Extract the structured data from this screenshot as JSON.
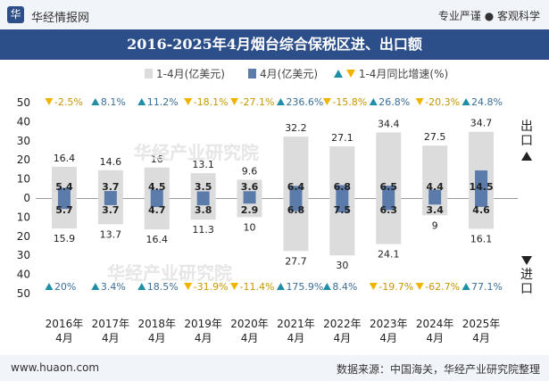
{
  "header": {
    "site_name": "华经情报网",
    "tagline": "专业严谨 ● 客观科学"
  },
  "chart_data": {
    "type": "bar",
    "title": "2016-2025年4月烟台综合保税区进、出口额",
    "categories": [
      "2016年\n4月",
      "2017年\n4月",
      "2018年\n4月",
      "2019年\n4月",
      "2020年\n4月",
      "2021年\n4月",
      "2022年\n4月",
      "2023年\n4月",
      "2024年\n4月",
      "2025年\n4月"
    ],
    "ylim": [
      -50,
      50
    ],
    "yticks": [
      "50",
      "40",
      "30",
      "20",
      "10",
      "0",
      "10",
      "20",
      "30",
      "40",
      "50"
    ],
    "legend": {
      "cumulative": "1-4月(亿美元)",
      "month": "4月(亿美元)",
      "growth": "1-4月同比增速(%)"
    },
    "side_labels": {
      "export": "出口",
      "import": "进口"
    },
    "export": {
      "cumulative": [
        16.4,
        14.6,
        16,
        13.1,
        9.6,
        32.2,
        27.1,
        34.4,
        27.5,
        34.7
      ],
      "month": [
        5.4,
        3.7,
        4.5,
        3.5,
        3.6,
        6.4,
        6.8,
        6.5,
        4.4,
        14.5
      ],
      "growth": [
        -2.5,
        8.1,
        11.2,
        -18.1,
        -27.1,
        236.6,
        -15.8,
        26.8,
        -20.3,
        24.8
      ],
      "growth_labels": [
        "-2.5%",
        "8.1%",
        "11.2%",
        "-18.1%",
        "-27.1%",
        "236.6%",
        "-15.8%",
        "26.8%",
        "-20.3%",
        "24.8%"
      ]
    },
    "import": {
      "cumulative": [
        15.9,
        13.7,
        16.4,
        11.3,
        10,
        27.7,
        30,
        24.1,
        9,
        16.1
      ],
      "month": [
        5.7,
        3.7,
        4.7,
        3.8,
        2.9,
        6.8,
        7.5,
        6.3,
        3.4,
        4.6
      ],
      "growth": [
        20,
        3.4,
        18.5,
        -31.9,
        -11.4,
        175.9,
        8.4,
        -19.7,
        -62.7,
        77.1
      ],
      "growth_labels": [
        "20%",
        "3.4%",
        "18.5%",
        "-31.9%",
        "-11.4%",
        "175.9%",
        "8.4%",
        "-19.7%",
        "-62.7%",
        "77.1%"
      ]
    },
    "colors": {
      "cumulative": "#dcdcdc",
      "month": "#5b7bab",
      "up": "#1f8fa8",
      "down": "#f0b400",
      "axis_text": "#222222",
      "up_text": "#3a6e9a",
      "down_text": "#c89600"
    }
  },
  "watermark": "华经产业研究院",
  "footer": {
    "url": "www.huaon.com",
    "source": "数据来源：中国海关，华经产业研究院整理"
  }
}
